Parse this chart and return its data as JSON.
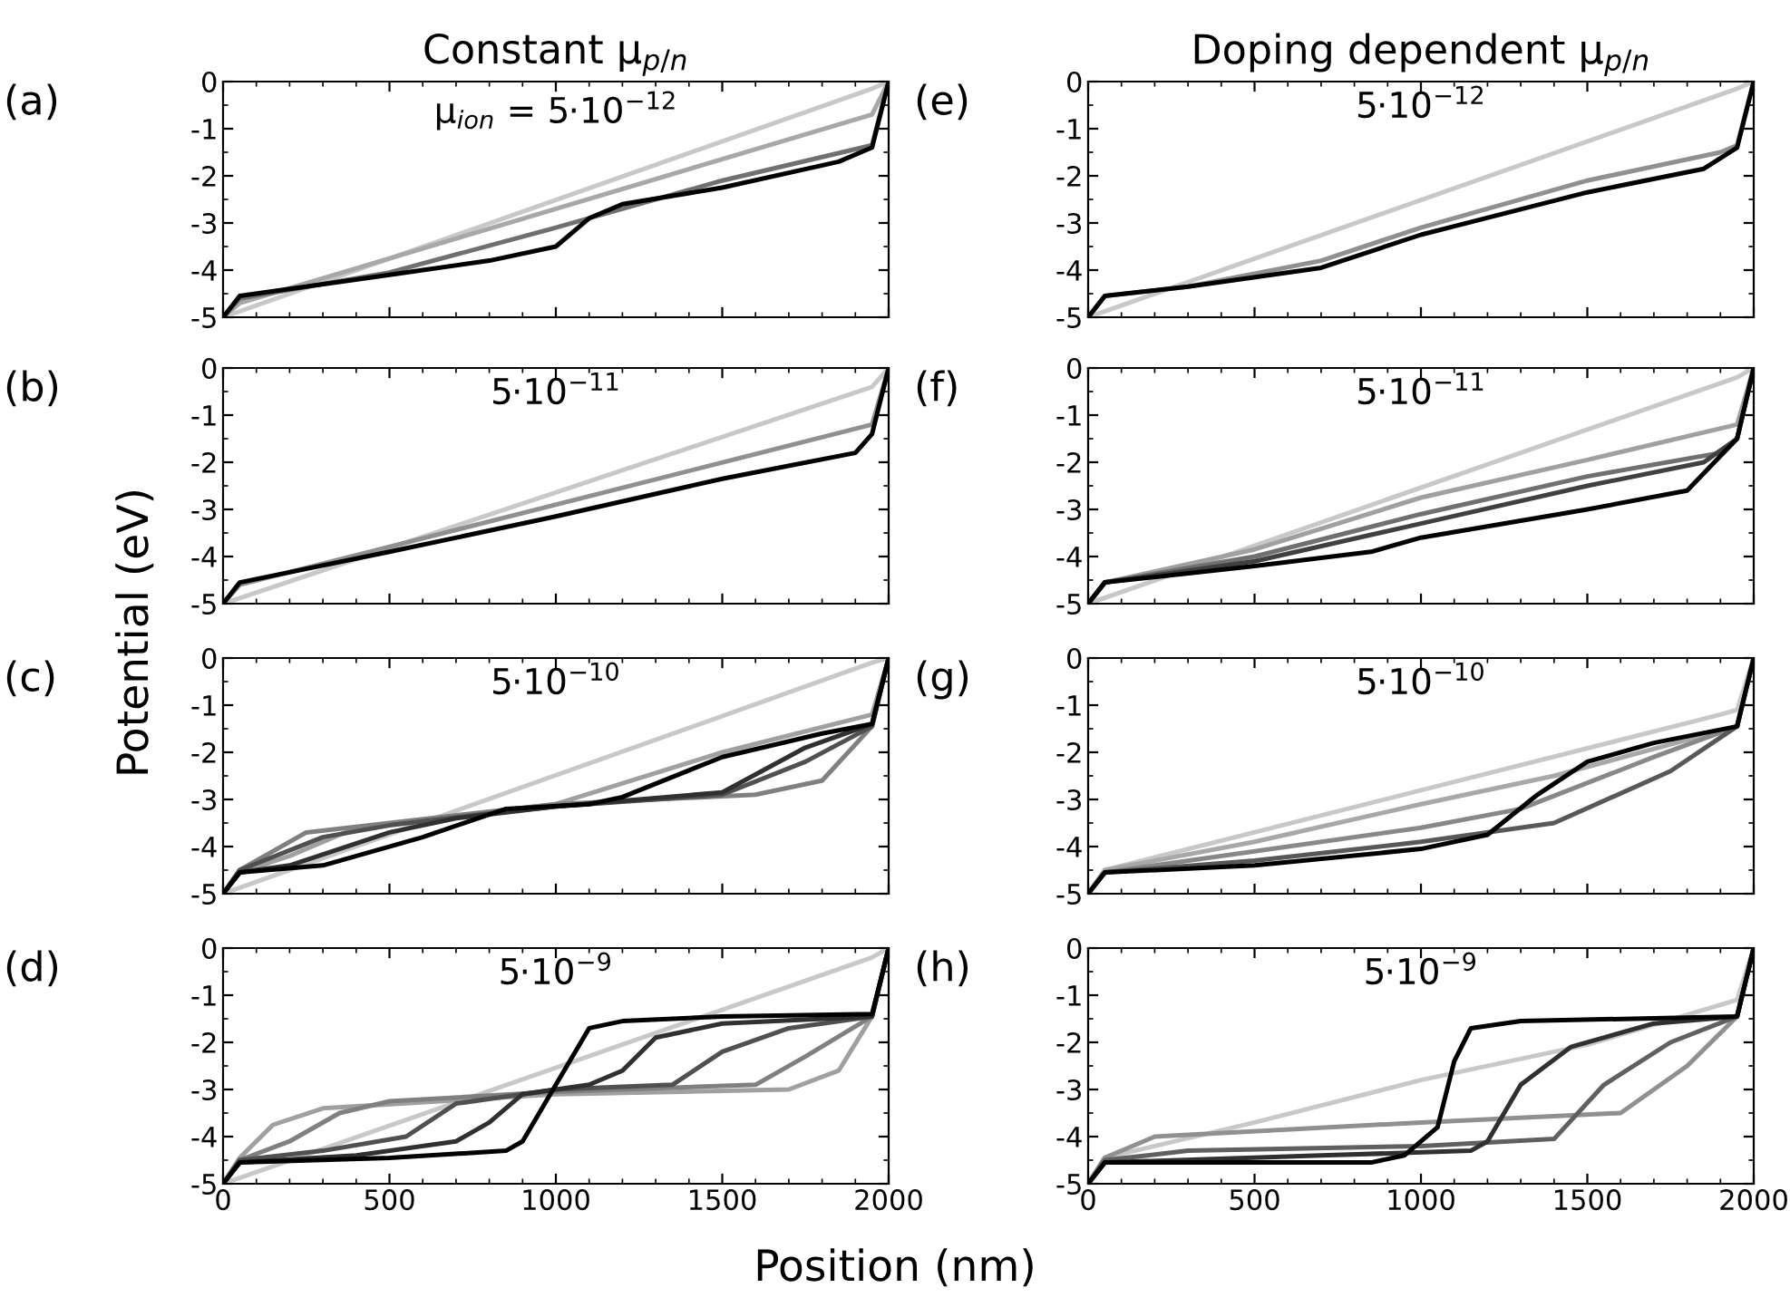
{
  "chart_data": [
    {
      "type": "line",
      "title": "Constant μ$_{p/n}$",
      "annotations": [
        "(a)",
        "μ$_{ion}$ = 5·10$^{−12}$"
      ],
      "xlim": [
        0,
        2000
      ],
      "xticks": [
        {
          "value": 0,
          "label": null
        },
        {
          "value": 500,
          "label": null
        },
        {
          "value": 1000,
          "label": null
        },
        {
          "value": 1500,
          "label": null
        },
        {
          "value": 2000,
          "label": null
        }
      ],
      "ylim": [
        -5,
        0
      ],
      "yticks": [
        -5,
        -4,
        -3,
        -2,
        -1,
        0
      ],
      "tick_labels": "y",
      "grid": false,
      "legend": false,
      "line_style": "solid",
      "series": [
        {
          "color": "#c8c8c8",
          "x": [
            0,
            1950,
            2000
          ],
          "values": [
            -5,
            -0.15,
            0
          ]
        },
        {
          "color": "#a8a8a8",
          "x": [
            0,
            50,
            1950,
            2000
          ],
          "values": [
            -5,
            -4.7,
            -0.7,
            0
          ]
        },
        {
          "color": "#707070",
          "x": [
            0,
            50,
            500,
            1000,
            1500,
            1950,
            2000
          ],
          "values": [
            -5,
            -4.6,
            -4.05,
            -3.1,
            -2.1,
            -1.35,
            0
          ]
        },
        {
          "color": "#000000",
          "x": [
            0,
            50,
            500,
            800,
            1000,
            1100,
            1200,
            1500,
            1850,
            1950,
            2000
          ],
          "values": [
            -5,
            -4.55,
            -4.1,
            -3.8,
            -3.5,
            -2.9,
            -2.6,
            -2.25,
            -1.7,
            -1.4,
            0
          ]
        }
      ]
    },
    {
      "type": "line",
      "annotations": [
        "(b)",
        "5·10$^{−11}$"
      ],
      "ylabel": "Potential (eV)",
      "xlim": [
        0,
        2000
      ],
      "xticks": [
        {
          "value": 0,
          "label": null
        },
        {
          "value": 500,
          "label": null
        },
        {
          "value": 1000,
          "label": null
        },
        {
          "value": 1500,
          "label": null
        },
        {
          "value": 2000,
          "label": null
        }
      ],
      "ylim": [
        -5,
        0
      ],
      "yticks": [
        -5,
        -4,
        -3,
        -2,
        -1,
        0
      ],
      "tick_labels": "y",
      "grid": false,
      "legend": false,
      "line_style": "solid",
      "series": [
        {
          "color": "#c8c8c8",
          "x": [
            0,
            1950,
            2000
          ],
          "values": [
            -5,
            -0.4,
            0
          ]
        },
        {
          "color": "#909090",
          "x": [
            0,
            50,
            1950,
            2000
          ],
          "values": [
            -5,
            -4.6,
            -1.2,
            0
          ]
        },
        {
          "color": "#000000",
          "x": [
            0,
            50,
            500,
            1000,
            1500,
            1900,
            1950,
            2000
          ],
          "values": [
            -5,
            -4.55,
            -3.9,
            -3.15,
            -2.35,
            -1.8,
            -1.4,
            0
          ]
        }
      ]
    },
    {
      "type": "line",
      "annotations": [
        "(c)",
        "5·10$^{−10}$"
      ],
      "xlim": [
        0,
        2000
      ],
      "xticks": [
        {
          "value": 0,
          "label": null
        },
        {
          "value": 500,
          "label": null
        },
        {
          "value": 1000,
          "label": null
        },
        {
          "value": 1500,
          "label": null
        },
        {
          "value": 2000,
          "label": null
        }
      ],
      "ylim": [
        -5,
        0
      ],
      "yticks": [
        -5,
        -4,
        -3,
        -2,
        -1,
        0
      ],
      "tick_labels": "y",
      "grid": false,
      "legend": false,
      "line_style": "solid",
      "series": [
        {
          "color": "#c8c8c8",
          "x": [
            0,
            1950,
            2000
          ],
          "values": [
            -5,
            -0.1,
            0
          ]
        },
        {
          "color": "#a0a0a0",
          "x": [
            0,
            50,
            200,
            400,
            1000,
            1500,
            1950,
            2000
          ],
          "values": [
            -5,
            -4.55,
            -4.2,
            -3.6,
            -3.1,
            -2.0,
            -1.2,
            0
          ]
        },
        {
          "color": "#808080",
          "x": [
            0,
            50,
            250,
            500,
            1000,
            1600,
            1800,
            1950,
            2000
          ],
          "values": [
            -5,
            -4.5,
            -3.7,
            -3.5,
            -3.1,
            -2.9,
            -2.6,
            -1.45,
            0
          ]
        },
        {
          "color": "#505050",
          "x": [
            0,
            50,
            300,
            500,
            800,
            1000,
            1500,
            1750,
            1950,
            2000
          ],
          "values": [
            -5,
            -4.5,
            -3.8,
            -3.55,
            -3.3,
            -3.15,
            -2.9,
            -2.2,
            -1.45,
            0
          ]
        },
        {
          "color": "#303030",
          "x": [
            0,
            50,
            200,
            500,
            700,
            1000,
            1500,
            1750,
            1950,
            2000
          ],
          "values": [
            -5,
            -4.55,
            -4.4,
            -3.7,
            -3.4,
            -3.15,
            -2.85,
            -1.9,
            -1.4,
            0
          ]
        },
        {
          "color": "#000000",
          "x": [
            0,
            50,
            300,
            600,
            850,
            1100,
            1200,
            1500,
            1800,
            1950,
            2000
          ],
          "values": [
            -5,
            -4.55,
            -4.4,
            -3.8,
            -3.2,
            -3.1,
            -2.95,
            -2.1,
            -1.6,
            -1.4,
            0
          ]
        }
      ]
    },
    {
      "type": "line",
      "annotations": [
        "(d)",
        "5·10$^{−9}$"
      ],
      "xlabel": "Position (nm)",
      "xlim": [
        0,
        2000
      ],
      "xticks": [
        0,
        500,
        1000,
        1500,
        2000
      ],
      "ylim": [
        -5,
        0
      ],
      "yticks": [
        -5,
        -4,
        -3,
        -2,
        -1,
        0
      ],
      "grid": false,
      "legend": false,
      "line_style": "solid",
      "series": [
        {
          "color": "#c8c8c8",
          "x": [
            0,
            1950,
            2000
          ],
          "values": [
            -5,
            -0.2,
            0
          ]
        },
        {
          "color": "#a0a0a0",
          "x": [
            0,
            50,
            150,
            300,
            1000,
            1700,
            1850,
            1950,
            2000
          ],
          "values": [
            -5,
            -4.45,
            -3.75,
            -3.4,
            -3.1,
            -3.0,
            -2.6,
            -1.45,
            0
          ]
        },
        {
          "color": "#808080",
          "x": [
            0,
            50,
            200,
            350,
            500,
            1000,
            1600,
            1750,
            1950,
            2000
          ],
          "values": [
            -5,
            -4.5,
            -4.1,
            -3.5,
            -3.25,
            -3.05,
            -2.9,
            -2.3,
            -1.45,
            0
          ]
        },
        {
          "color": "#505050",
          "x": [
            0,
            50,
            300,
            550,
            700,
            1000,
            1350,
            1500,
            1700,
            1950,
            2000
          ],
          "values": [
            -5,
            -4.5,
            -4.3,
            -4.0,
            -3.3,
            -3.0,
            -2.9,
            -2.2,
            -1.7,
            -1.45,
            0
          ]
        },
        {
          "color": "#303030",
          "x": [
            0,
            50,
            400,
            700,
            800,
            900,
            1100,
            1200,
            1300,
            1500,
            1950,
            2000
          ],
          "values": [
            -5,
            -4.55,
            -4.4,
            -4.1,
            -3.7,
            -3.1,
            -2.9,
            -2.6,
            -1.9,
            -1.6,
            -1.45,
            0
          ]
        },
        {
          "color": "#000000",
          "x": [
            0,
            50,
            500,
            850,
            900,
            1000,
            1100,
            1200,
            1500,
            1950,
            2000
          ],
          "values": [
            -5,
            -4.55,
            -4.45,
            -4.3,
            -4.1,
            -2.9,
            -1.7,
            -1.55,
            -1.45,
            -1.4,
            0
          ]
        }
      ]
    },
    {
      "type": "line",
      "title": "Doping dependent μ$_{p/n}$",
      "annotations": [
        "(e)",
        "5·10$^{−12}$"
      ],
      "xlim": [
        0,
        2000
      ],
      "xticks": [
        {
          "value": 0,
          "label": null
        },
        {
          "value": 500,
          "label": null
        },
        {
          "value": 1000,
          "label": null
        },
        {
          "value": 1500,
          "label": null
        },
        {
          "value": 2000,
          "label": null
        }
      ],
      "ylim": [
        -5,
        0
      ],
      "yticks": [
        -5,
        -4,
        -3,
        -2,
        -1,
        0
      ],
      "tick_labels": "y",
      "grid": false,
      "legend": false,
      "line_style": "solid",
      "series": [
        {
          "color": "#c8c8c8",
          "x": [
            0,
            1950,
            2000
          ],
          "values": [
            -5,
            -0.15,
            0
          ]
        },
        {
          "color": "#909090",
          "x": [
            0,
            50,
            300,
            700,
            1000,
            1500,
            1900,
            1950,
            2000
          ],
          "values": [
            -5,
            -4.55,
            -4.35,
            -3.8,
            -3.1,
            -2.1,
            -1.5,
            -1.35,
            0
          ]
        },
        {
          "color": "#000000",
          "x": [
            0,
            50,
            300,
            700,
            1000,
            1500,
            1850,
            1950,
            2000
          ],
          "values": [
            -5,
            -4.55,
            -4.35,
            -3.95,
            -3.25,
            -2.35,
            -1.85,
            -1.4,
            0
          ]
        }
      ]
    },
    {
      "type": "line",
      "annotations": [
        "(f)",
        "5·10$^{−11}$"
      ],
      "xlim": [
        0,
        2000
      ],
      "xticks": [
        {
          "value": 0,
          "label": null
        },
        {
          "value": 500,
          "label": null
        },
        {
          "value": 1000,
          "label": null
        },
        {
          "value": 1500,
          "label": null
        },
        {
          "value": 2000,
          "label": null
        }
      ],
      "ylim": [
        -5,
        0
      ],
      "yticks": [
        -5,
        -4,
        -3,
        -2,
        -1,
        0
      ],
      "tick_labels": "y",
      "grid": false,
      "legend": false,
      "line_style": "solid",
      "series": [
        {
          "color": "#c8c8c8",
          "x": [
            0,
            1950,
            2000
          ],
          "values": [
            -5,
            -0.2,
            0
          ]
        },
        {
          "color": "#a0a0a0",
          "x": [
            0,
            50,
            500,
            1000,
            1500,
            1950,
            2000
          ],
          "values": [
            -5,
            -4.55,
            -3.85,
            -2.75,
            -1.95,
            -1.2,
            0
          ]
        },
        {
          "color": "#707070",
          "x": [
            0,
            50,
            500,
            1000,
            1500,
            1900,
            1950,
            2000
          ],
          "values": [
            -5,
            -4.55,
            -4.0,
            -3.1,
            -2.3,
            -1.8,
            -1.5,
            0
          ]
        },
        {
          "color": "#404040",
          "x": [
            0,
            50,
            500,
            1000,
            1500,
            1850,
            1950,
            2000
          ],
          "values": [
            -5,
            -4.55,
            -4.1,
            -3.3,
            -2.5,
            -2.0,
            -1.5,
            0
          ]
        },
        {
          "color": "#000000",
          "x": [
            0,
            50,
            500,
            850,
            1000,
            1500,
            1800,
            1950,
            2000
          ],
          "values": [
            -5,
            -4.55,
            -4.2,
            -3.9,
            -3.6,
            -3.0,
            -2.6,
            -1.5,
            0
          ]
        }
      ]
    },
    {
      "type": "line",
      "annotations": [
        "(g)",
        "5·10$^{−10}$"
      ],
      "xlim": [
        0,
        2000
      ],
      "xticks": [
        {
          "value": 0,
          "label": null
        },
        {
          "value": 500,
          "label": null
        },
        {
          "value": 1000,
          "label": null
        },
        {
          "value": 1500,
          "label": null
        },
        {
          "value": 2000,
          "label": null
        }
      ],
      "ylim": [
        -5,
        0
      ],
      "yticks": [
        -5,
        -4,
        -3,
        -2,
        -1,
        0
      ],
      "tick_labels": "y",
      "grid": false,
      "legend": false,
      "line_style": "solid",
      "series": [
        {
          "color": "#c8c8c8",
          "x": [
            0,
            50,
            1900,
            1950,
            2000
          ],
          "values": [
            -5,
            -4.5,
            -1.2,
            -1.1,
            0
          ]
        },
        {
          "color": "#a8a8a8",
          "x": [
            0,
            50,
            500,
            1000,
            1400,
            1950,
            2000
          ],
          "values": [
            -5,
            -4.5,
            -3.9,
            -3.1,
            -2.5,
            -1.45,
            0
          ]
        },
        {
          "color": "#888888",
          "x": [
            0,
            50,
            500,
            1000,
            1300,
            1700,
            1950,
            2000
          ],
          "values": [
            -5,
            -4.55,
            -4.1,
            -3.6,
            -3.2,
            -2.1,
            -1.45,
            0
          ]
        },
        {
          "color": "#585858",
          "x": [
            0,
            50,
            500,
            1000,
            1400,
            1750,
            1950,
            2000
          ],
          "values": [
            -5,
            -4.55,
            -4.3,
            -3.9,
            -3.5,
            -2.4,
            -1.45,
            0
          ]
        },
        {
          "color": "#000000",
          "x": [
            0,
            50,
            500,
            1000,
            1200,
            1350,
            1500,
            1700,
            1950,
            2000
          ],
          "values": [
            -5,
            -4.55,
            -4.4,
            -4.05,
            -3.75,
            -2.9,
            -2.2,
            -1.8,
            -1.45,
            0
          ]
        }
      ]
    },
    {
      "type": "line",
      "annotations": [
        "(h)",
        "5·10$^{−9}$"
      ],
      "xlim": [
        0,
        2000
      ],
      "xticks": [
        0,
        500,
        1000,
        1500,
        2000
      ],
      "ylim": [
        -5,
        0
      ],
      "yticks": [
        -5,
        -4,
        -3,
        -2,
        -1,
        0
      ],
      "grid": false,
      "legend": false,
      "line_style": "solid",
      "series": [
        {
          "color": "#c8c8c8",
          "x": [
            0,
            50,
            500,
            1000,
            1500,
            1950,
            2000
          ],
          "values": [
            -5,
            -4.45,
            -3.7,
            -2.8,
            -2.05,
            -1.1,
            0
          ]
        },
        {
          "color": "#909090",
          "x": [
            0,
            50,
            200,
            1000,
            1600,
            1800,
            1950,
            2000
          ],
          "values": [
            -5,
            -4.45,
            -4.0,
            -3.7,
            -3.5,
            -2.5,
            -1.45,
            0
          ]
        },
        {
          "color": "#606060",
          "x": [
            0,
            50,
            300,
            1000,
            1400,
            1550,
            1750,
            1950,
            2000
          ],
          "values": [
            -5,
            -4.5,
            -4.3,
            -4.2,
            -4.05,
            -2.9,
            -2.0,
            -1.45,
            0
          ]
        },
        {
          "color": "#303030",
          "x": [
            0,
            50,
            700,
            1150,
            1200,
            1300,
            1450,
            1700,
            1950,
            2000
          ],
          "values": [
            -5,
            -4.55,
            -4.4,
            -4.3,
            -4.1,
            -2.9,
            -2.1,
            -1.6,
            -1.45,
            0
          ]
        },
        {
          "color": "#000000",
          "x": [
            0,
            50,
            850,
            950,
            1050,
            1100,
            1150,
            1300,
            1950,
            2000
          ],
          "values": [
            -5,
            -4.55,
            -4.55,
            -4.4,
            -3.8,
            -2.4,
            -1.7,
            -1.55,
            -1.45,
            0
          ]
        }
      ]
    }
  ]
}
